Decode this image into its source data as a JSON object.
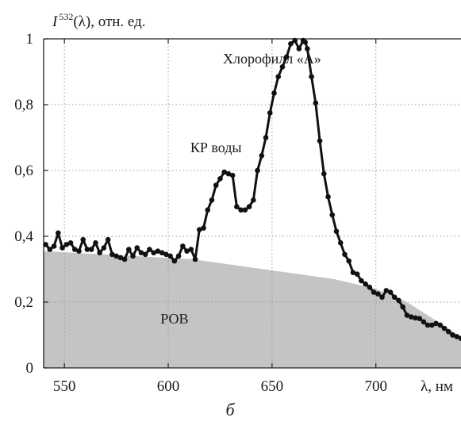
{
  "chart_data": {
    "type": "line",
    "title": "",
    "ylabel": {
      "symbol": "I",
      "superscript": "532",
      "rest": "(λ), отн. ед."
    },
    "xlabel": "λ, нм",
    "caption": "б",
    "xlim": [
      540,
      741
    ],
    "ylim": [
      0,
      1
    ],
    "xticks": [
      550,
      600,
      650,
      700
    ],
    "yticks": [
      {
        "v": 0,
        "label": "0"
      },
      {
        "v": 0.2,
        "label": "0,2"
      },
      {
        "v": 0.4,
        "label": "0,4"
      },
      {
        "v": 0.6,
        "label": "0,6"
      },
      {
        "v": 0.8,
        "label": "0,8"
      },
      {
        "v": 1,
        "label": "1"
      }
    ],
    "grid": true,
    "annotations": [
      {
        "text": "Хлорофилл «А»",
        "x": 650,
        "y": 0.925
      },
      {
        "text": "КР воды",
        "x": 623,
        "y": 0.655
      },
      {
        "text": "РОВ",
        "x": 603,
        "y": 0.135
      }
    ],
    "background_area": {
      "name": "РОВ",
      "color": "#c4c4c4",
      "x": [
        540,
        612,
        640,
        680,
        700,
        715,
        741
      ],
      "y": [
        0.355,
        0.33,
        0.305,
        0.27,
        0.24,
        0.2,
        0.095
      ]
    },
    "series": [
      {
        "color": "#111111",
        "x": [
          541,
          543,
          545,
          547,
          549,
          551,
          553,
          555,
          557,
          559,
          561,
          563,
          565,
          567,
          569,
          571,
          573,
          575,
          577,
          579,
          581,
          583,
          585,
          587,
          589,
          591,
          593,
          595,
          597,
          599,
          601,
          603,
          605,
          607,
          609,
          611,
          613,
          615,
          617,
          619,
          621,
          623,
          625,
          627,
          629,
          631,
          633,
          635,
          637,
          639,
          641,
          643,
          645,
          647,
          649,
          651,
          653,
          655,
          657,
          659,
          661,
          663,
          665,
          666,
          667,
          669,
          671,
          673,
          675,
          677,
          679,
          681,
          683,
          685,
          687,
          689,
          691,
          693,
          695,
          697,
          699,
          701,
          703,
          705,
          707,
          709,
          711,
          713,
          715,
          717,
          719,
          721,
          723,
          725,
          727,
          729,
          731,
          733,
          735,
          737,
          739,
          741
        ],
        "y": [
          0.375,
          0.36,
          0.37,
          0.41,
          0.365,
          0.375,
          0.38,
          0.36,
          0.355,
          0.39,
          0.36,
          0.36,
          0.38,
          0.35,
          0.365,
          0.39,
          0.345,
          0.34,
          0.335,
          0.33,
          0.36,
          0.34,
          0.365,
          0.35,
          0.345,
          0.36,
          0.35,
          0.355,
          0.35,
          0.345,
          0.34,
          0.325,
          0.34,
          0.37,
          0.355,
          0.36,
          0.33,
          0.42,
          0.425,
          0.48,
          0.51,
          0.555,
          0.575,
          0.595,
          0.59,
          0.585,
          0.49,
          0.48,
          0.48,
          0.49,
          0.51,
          0.6,
          0.645,
          0.7,
          0.775,
          0.835,
          0.885,
          0.915,
          0.945,
          0.985,
          0.995,
          0.97,
          0.995,
          0.99,
          0.97,
          0.885,
          0.805,
          0.69,
          0.59,
          0.52,
          0.465,
          0.415,
          0.38,
          0.345,
          0.325,
          0.29,
          0.285,
          0.265,
          0.255,
          0.245,
          0.23,
          0.225,
          0.215,
          0.235,
          0.23,
          0.215,
          0.205,
          0.185,
          0.16,
          0.155,
          0.152,
          0.15,
          0.14,
          0.13,
          0.13,
          0.135,
          0.13,
          0.12,
          0.11,
          0.1,
          0.095,
          0.09
        ]
      }
    ]
  }
}
